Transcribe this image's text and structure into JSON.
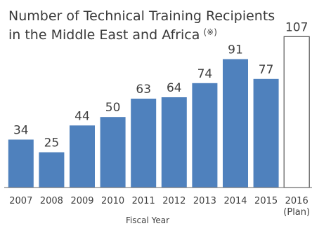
{
  "chart_data": {
    "type": "bar",
    "title_line1": "Number of Technical Training Recipients",
    "title_line2": "in the Middle East and Africa",
    "title_mark": "(※)",
    "xlabel": "Fiscal Year",
    "ylabel": "",
    "ylim": [
      0,
      115
    ],
    "grid": false,
    "legend": "none",
    "categories": [
      "2007",
      "2008",
      "2009",
      "2010",
      "2011",
      "2012",
      "2013",
      "2014",
      "2015",
      "2016"
    ],
    "category_notes": [
      "",
      "",
      "",
      "",
      "",
      "",
      "",
      "",
      "",
      "(Plan)"
    ],
    "values": [
      34,
      25,
      44,
      50,
      63,
      64,
      74,
      91,
      77,
      107
    ],
    "planned": [
      false,
      false,
      false,
      false,
      false,
      false,
      false,
      false,
      false,
      true
    ],
    "colors": {
      "actual": "#4f81bd",
      "plan_fill": "#ffffff",
      "plan_stroke": "#555555",
      "axis": "#666666"
    }
  }
}
